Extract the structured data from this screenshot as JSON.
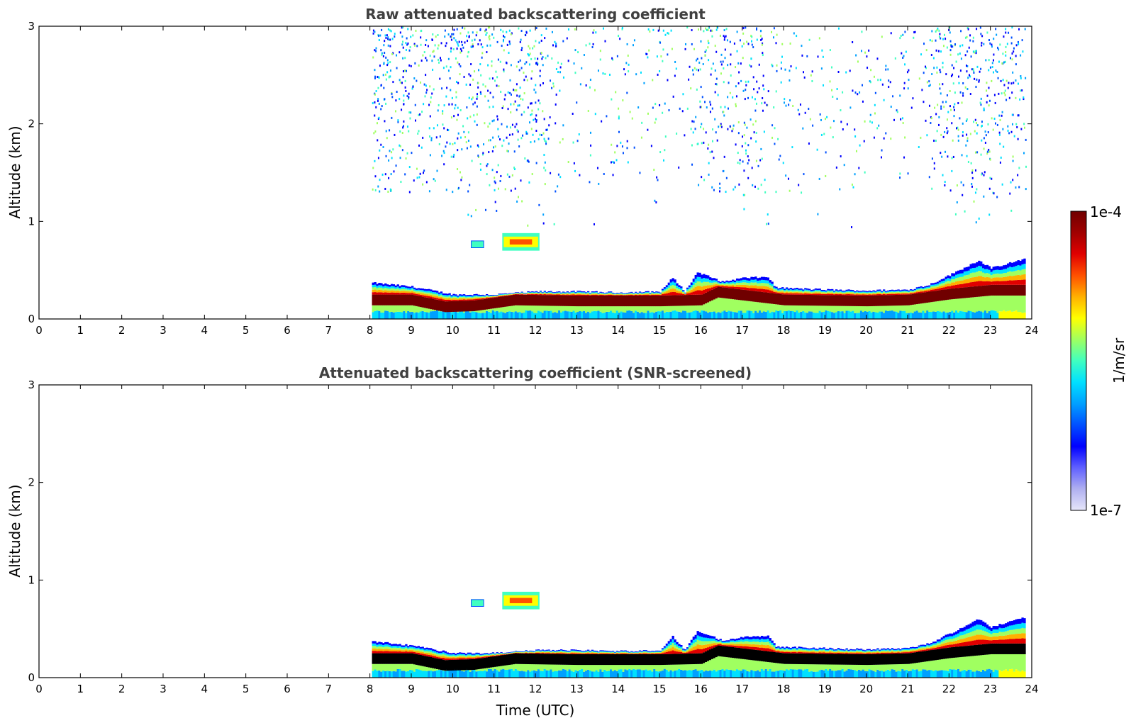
{
  "chart_data": [
    {
      "type": "heatmap",
      "title": "Raw attenuated backscattering coefficient",
      "xlabel": "",
      "ylabel": "Altitude (km)",
      "xlim": [
        0,
        24
      ],
      "ylim": [
        0,
        3
      ],
      "xticks": [
        "0",
        "1",
        "2",
        "3",
        "4",
        "5",
        "6",
        "7",
        "8",
        "9",
        "10",
        "11",
        "12",
        "13",
        "14",
        "15",
        "16",
        "17",
        "18",
        "19",
        "20",
        "21",
        "22",
        "23",
        "24"
      ],
      "yticks": [
        "0",
        "1",
        "2",
        "3"
      ],
      "data_start_hour": 8.05,
      "data_end_hour": 23.85,
      "noise": true,
      "boundary_layer_top_km": [
        [
          8.05,
          0.37
        ],
        [
          9,
          0.33
        ],
        [
          10,
          0.25
        ],
        [
          11,
          0.25
        ],
        [
          12,
          0.28
        ],
        [
          13,
          0.28
        ],
        [
          14,
          0.27
        ],
        [
          15,
          0.28
        ],
        [
          15.3,
          0.42
        ],
        [
          15.6,
          0.28
        ],
        [
          15.9,
          0.48
        ],
        [
          16.5,
          0.38
        ],
        [
          17,
          0.42
        ],
        [
          17.6,
          0.43
        ],
        [
          17.8,
          0.32
        ],
        [
          19,
          0.3
        ],
        [
          20,
          0.29
        ],
        [
          21,
          0.3
        ],
        [
          21.5,
          0.35
        ],
        [
          22,
          0.45
        ],
        [
          22.7,
          0.6
        ],
        [
          23,
          0.52
        ],
        [
          23.85,
          0.62
        ]
      ],
      "core_layer_km": [
        [
          8.05,
          0.2
        ],
        [
          9,
          0.2
        ],
        [
          9.8,
          0.13
        ],
        [
          10.5,
          0.14
        ],
        [
          11.5,
          0.2
        ],
        [
          13,
          0.19
        ],
        [
          15,
          0.19
        ],
        [
          16,
          0.2
        ],
        [
          16.4,
          0.28
        ],
        [
          17,
          0.25
        ],
        [
          18,
          0.2
        ],
        [
          20,
          0.19
        ],
        [
          21,
          0.2
        ],
        [
          22,
          0.26
        ],
        [
          23,
          0.3
        ],
        [
          23.85,
          0.3
        ]
      ],
      "cloud_patches": [
        {
          "x0": 10.45,
          "x1": 10.75,
          "y0": 0.73,
          "y1": 0.8,
          "level": "cyan"
        },
        {
          "x0": 11.2,
          "x1": 12.1,
          "y0": 0.7,
          "y1": 0.88,
          "level": "yellow-red"
        }
      ]
    },
    {
      "type": "heatmap",
      "title": "Attenuated backscattering coefficient (SNR-screened)",
      "xlabel": "Time (UTC)",
      "ylabel": "Altitude (km)",
      "xlim": [
        0,
        24
      ],
      "ylim": [
        0,
        3
      ],
      "xticks": [
        "0",
        "1",
        "2",
        "3",
        "4",
        "5",
        "6",
        "7",
        "8",
        "9",
        "10",
        "11",
        "12",
        "13",
        "14",
        "15",
        "16",
        "17",
        "18",
        "19",
        "20",
        "21",
        "22",
        "23",
        "24"
      ],
      "yticks": [
        "0",
        "1",
        "2",
        "3"
      ],
      "data_start_hour": 8.05,
      "data_end_hour": 23.85,
      "noise": false,
      "core_color": "#000000"
    }
  ],
  "colorbar": {
    "label": "1/m/sr",
    "max_label": "1e-4",
    "min_label": "1e-7",
    "colors": [
      "#e6e6fa",
      "#b0b0f0",
      "#6060ff",
      "#0000ff",
      "#0050ff",
      "#00a0ff",
      "#00e0ff",
      "#40ffc0",
      "#a0ff60",
      "#ffff00",
      "#ffb000",
      "#ff5000",
      "#e00000",
      "#a00000",
      "#700000"
    ]
  }
}
